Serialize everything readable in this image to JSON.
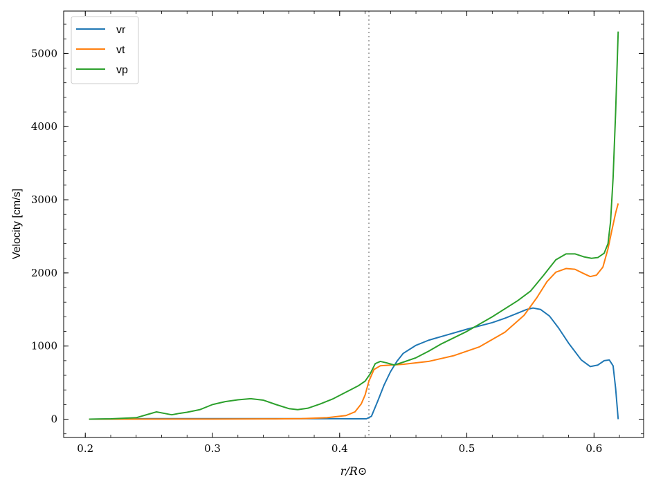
{
  "chart_data": {
    "type": "line",
    "title": "",
    "xlabel": "r/R⊙",
    "ylabel": "Velocity [cm/s]",
    "xlim": [
      0.183,
      0.639
    ],
    "ylim": [
      -250,
      5580
    ],
    "xticks": [
      0.2,
      0.3,
      0.4,
      0.5,
      0.6
    ],
    "xtick_labels": [
      "0.2",
      "0.3",
      "0.4",
      "0.5",
      "0.6"
    ],
    "xminor_step": 0.02,
    "yticks": [
      0,
      1000,
      2000,
      3000,
      4000,
      5000
    ],
    "ytick_labels": [
      "0",
      "1000",
      "2000",
      "3000",
      "4000",
      "5000"
    ],
    "yminor_step": 200,
    "grid": false,
    "legend_position": "top-left",
    "vline": {
      "x": 0.423,
      "color": "#aaaaaa",
      "style": "dotted"
    },
    "series": [
      {
        "name": "vr",
        "color": "#1f77b4",
        "points": [
          [
            0.203,
            0
          ],
          [
            0.25,
            8
          ],
          [
            0.3,
            8
          ],
          [
            0.35,
            8
          ],
          [
            0.4,
            6
          ],
          [
            0.415,
            5
          ],
          [
            0.421,
            5
          ],
          [
            0.425,
            40
          ],
          [
            0.43,
            250
          ],
          [
            0.435,
            470
          ],
          [
            0.44,
            650
          ],
          [
            0.445,
            790
          ],
          [
            0.45,
            900
          ],
          [
            0.46,
            1010
          ],
          [
            0.47,
            1080
          ],
          [
            0.48,
            1130
          ],
          [
            0.5,
            1230
          ],
          [
            0.52,
            1320
          ],
          [
            0.53,
            1380
          ],
          [
            0.54,
            1450
          ],
          [
            0.547,
            1500
          ],
          [
            0.552,
            1520
          ],
          [
            0.558,
            1500
          ],
          [
            0.565,
            1410
          ],
          [
            0.572,
            1250
          ],
          [
            0.58,
            1040
          ],
          [
            0.59,
            810
          ],
          [
            0.597,
            720
          ],
          [
            0.603,
            740
          ],
          [
            0.608,
            800
          ],
          [
            0.612,
            810
          ],
          [
            0.615,
            730
          ],
          [
            0.617,
            420
          ],
          [
            0.619,
            0
          ]
        ]
      },
      {
        "name": "vt",
        "color": "#ff7f0e",
        "points": [
          [
            0.203,
            0
          ],
          [
            0.3,
            2
          ],
          [
            0.35,
            4
          ],
          [
            0.37,
            8
          ],
          [
            0.39,
            20
          ],
          [
            0.405,
            50
          ],
          [
            0.412,
            100
          ],
          [
            0.417,
            210
          ],
          [
            0.42,
            330
          ],
          [
            0.423,
            520
          ],
          [
            0.427,
            680
          ],
          [
            0.432,
            730
          ],
          [
            0.44,
            740
          ],
          [
            0.45,
            750
          ],
          [
            0.47,
            790
          ],
          [
            0.49,
            870
          ],
          [
            0.51,
            990
          ],
          [
            0.53,
            1190
          ],
          [
            0.545,
            1420
          ],
          [
            0.555,
            1660
          ],
          [
            0.563,
            1880
          ],
          [
            0.57,
            2010
          ],
          [
            0.578,
            2060
          ],
          [
            0.585,
            2050
          ],
          [
            0.592,
            1990
          ],
          [
            0.597,
            1950
          ],
          [
            0.602,
            1970
          ],
          [
            0.607,
            2080
          ],
          [
            0.611,
            2330
          ],
          [
            0.614,
            2580
          ],
          [
            0.617,
            2820
          ],
          [
            0.619,
            2950
          ]
        ]
      },
      {
        "name": "vp",
        "color": "#2ca02c",
        "points": [
          [
            0.203,
            0
          ],
          [
            0.22,
            5
          ],
          [
            0.24,
            20
          ],
          [
            0.25,
            70
          ],
          [
            0.256,
            100
          ],
          [
            0.262,
            80
          ],
          [
            0.268,
            60
          ],
          [
            0.274,
            80
          ],
          [
            0.28,
            95
          ],
          [
            0.29,
            130
          ],
          [
            0.3,
            200
          ],
          [
            0.31,
            240
          ],
          [
            0.32,
            265
          ],
          [
            0.33,
            280
          ],
          [
            0.34,
            260
          ],
          [
            0.35,
            200
          ],
          [
            0.36,
            145
          ],
          [
            0.367,
            130
          ],
          [
            0.375,
            150
          ],
          [
            0.385,
            210
          ],
          [
            0.395,
            280
          ],
          [
            0.405,
            370
          ],
          [
            0.415,
            460
          ],
          [
            0.42,
            520
          ],
          [
            0.424,
            620
          ],
          [
            0.428,
            760
          ],
          [
            0.432,
            790
          ],
          [
            0.437,
            770
          ],
          [
            0.443,
            740
          ],
          [
            0.45,
            780
          ],
          [
            0.46,
            840
          ],
          [
            0.47,
            930
          ],
          [
            0.48,
            1030
          ],
          [
            0.5,
            1200
          ],
          [
            0.52,
            1400
          ],
          [
            0.54,
            1620
          ],
          [
            0.55,
            1750
          ],
          [
            0.56,
            1960
          ],
          [
            0.57,
            2180
          ],
          [
            0.578,
            2260
          ],
          [
            0.585,
            2260
          ],
          [
            0.592,
            2220
          ],
          [
            0.598,
            2200
          ],
          [
            0.603,
            2210
          ],
          [
            0.608,
            2270
          ],
          [
            0.611,
            2400
          ],
          [
            0.613,
            2700
          ],
          [
            0.615,
            3300
          ],
          [
            0.617,
            4200
          ],
          [
            0.619,
            5300
          ]
        ]
      }
    ]
  }
}
